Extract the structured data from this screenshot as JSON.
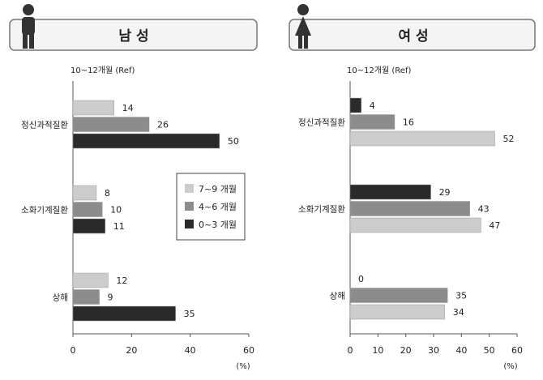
{
  "chart_data": [
    {
      "type": "bar",
      "title": "남 성",
      "subtitle": "10~12개월 (Ref)",
      "categories": [
        "정신과적질환",
        "소화기계질환",
        "상해"
      ],
      "series": [
        {
          "name": "7~9 개월",
          "values": [
            14,
            8,
            12
          ],
          "color": "#cccccc"
        },
        {
          "name": "4~6 개월",
          "values": [
            26,
            10,
            9
          ],
          "color": "#8c8c8c"
        },
        {
          "name": "0~3 개월",
          "values": [
            50,
            11,
            35
          ],
          "color": "#2a2a2a"
        }
      ],
      "xlim": [
        0,
        60
      ],
      "xticks": [
        "0",
        "20",
        "40",
        "60"
      ],
      "unit": "(%)",
      "legend": "center"
    },
    {
      "type": "bar",
      "title": "여 성",
      "subtitle": "10~12개월 (Ref)",
      "categories": [
        "정신과적질환",
        "소화기계질환",
        "상해"
      ],
      "series": [
        {
          "name": "0~3 개월",
          "values": [
            4,
            29,
            0
          ],
          "color": "#2a2a2a"
        },
        {
          "name": "4~6 개월",
          "values": [
            16,
            43,
            35
          ],
          "color": "#8c8c8c"
        },
        {
          "name": "7~9 개월",
          "values": [
            52,
            47,
            34
          ],
          "color": "#cccccc"
        }
      ],
      "xlim": [
        0,
        60
      ],
      "xticks": [
        "0",
        "10",
        "20",
        "30",
        "40",
        "50",
        "60"
      ],
      "unit": "(%)"
    }
  ],
  "icons": {
    "male": "male-figure-icon",
    "female": "female-figure-icon"
  }
}
